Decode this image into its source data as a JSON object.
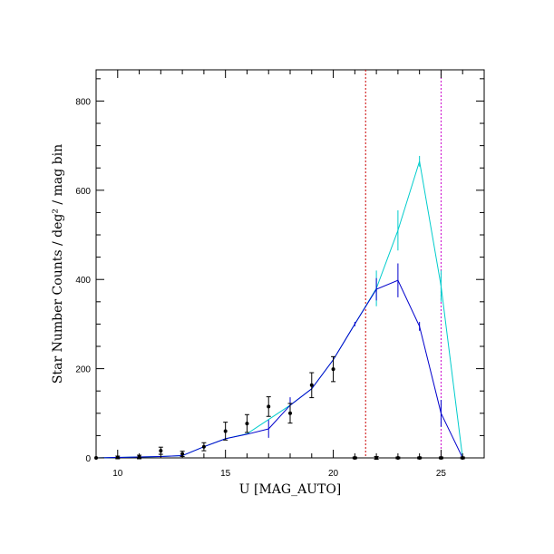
{
  "chart_data": {
    "type": "line",
    "xlabel": "U [MAG_AUTO]",
    "ylabel": "Star Number Counts / deg² / mag bin",
    "xlim": [
      9,
      27
    ],
    "ylim": [
      0,
      870
    ],
    "x_ticks": [
      10,
      15,
      20,
      25
    ],
    "y_ticks": [
      0,
      200,
      400,
      600,
      800
    ],
    "x_minor_step": 1,
    "y_minor_step": 50,
    "grid": false,
    "series": [
      {
        "color": "#00cccc",
        "style": "line-with-errorbars",
        "x": [
          9,
          10,
          11,
          12,
          13,
          14,
          15,
          16,
          17,
          18,
          19,
          20,
          21,
          22,
          23,
          24,
          25,
          26
        ],
        "y": [
          0,
          1,
          2,
          3,
          5,
          25,
          43,
          54,
          86,
          118,
          155,
          220,
          300,
          380,
          510,
          665,
          385,
          0
        ],
        "err": [
          0,
          0,
          0,
          0,
          0,
          0,
          0,
          0,
          0,
          0,
          0,
          0,
          0,
          40,
          45,
          12,
          35,
          0
        ]
      },
      {
        "color": "#0000cc",
        "style": "line-with-errorbars",
        "x": [
          9,
          10,
          11,
          12,
          13,
          14,
          15,
          16,
          17,
          18,
          19,
          20,
          21,
          22,
          23,
          24,
          25,
          26
        ],
        "y": [
          0,
          1,
          2,
          3,
          5,
          25,
          43,
          53,
          65,
          118,
          155,
          220,
          300,
          378,
          398,
          295,
          100,
          0
        ],
        "err": [
          0,
          0,
          0,
          0,
          0,
          0,
          0,
          0,
          20,
          18,
          0,
          0,
          5,
          25,
          38,
          10,
          30,
          0
        ]
      },
      {
        "color": "#000000",
        "style": "points-with-errorbars",
        "x": [
          9,
          10,
          11,
          12,
          13,
          14,
          15,
          16,
          17,
          18,
          19,
          20,
          21,
          22,
          23,
          24,
          25,
          26
        ],
        "y": [
          0,
          1,
          2,
          16,
          9,
          25,
          60,
          77,
          115,
          100,
          163,
          199,
          0,
          0,
          0,
          0,
          0,
          0
        ],
        "err": [
          0,
          3,
          4,
          8,
          6,
          9,
          20,
          20,
          22,
          22,
          28,
          28,
          2,
          3,
          2,
          2,
          2,
          2
        ]
      }
    ],
    "vlines": [
      {
        "x": 21.5,
        "color": "#cc0000",
        "style": "dotted"
      },
      {
        "x": 25.0,
        "color": "#cc00cc",
        "style": "dotted"
      }
    ]
  }
}
